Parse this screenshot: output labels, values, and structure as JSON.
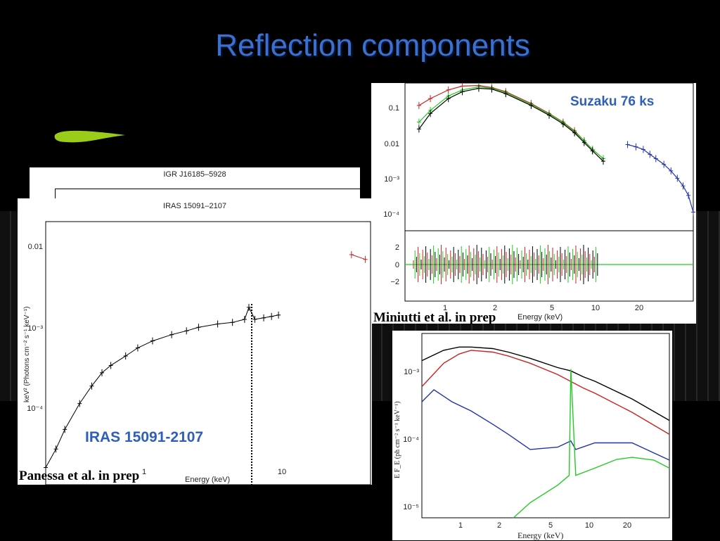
{
  "slide": {
    "title": "Reflection components",
    "accent_blue": "#3b6fd0",
    "leaf_color": "#9acd1a"
  },
  "panels": {
    "igr": {
      "title": "IGR J16185–5928"
    },
    "iras": {
      "title": "IRAS 15091–2107",
      "label": "IRAS 15091-2107",
      "credit": "Panessa et al. in prep",
      "xlabel": "Energy (keV)",
      "ylabel": "keV² (Photons cm⁻² s⁻¹ keV⁻¹)",
      "yticks": [
        "0.01",
        "10⁻³",
        "10⁻⁴"
      ],
      "xticks": [
        "1",
        "10"
      ]
    },
    "suzaku": {
      "label": "Suzaku 76 ks",
      "credit": "Miniutti et al. in prep",
      "xlabel": "Energy (keV)",
      "yticks": [
        "0.1",
        "0.01",
        "10⁻³",
        "10⁻⁴"
      ],
      "resid_ticks": [
        "2",
        "0",
        "−2"
      ],
      "xticks": [
        "1",
        "2",
        "5",
        "10",
        "20"
      ]
    },
    "model": {
      "xlabel": "Energy (keV)",
      "ylabel": "E F_E (ph cm⁻² s⁻¹ keV⁻¹)",
      "yticks": [
        "10⁻³",
        "10⁻⁴",
        "10⁻⁵"
      ],
      "xticks": [
        "1",
        "2",
        "5",
        "10",
        "20"
      ]
    }
  },
  "chart_data": [
    {
      "type": "scatter",
      "title": "IRAS 15091–2107",
      "xlabel": "Energy (keV)",
      "ylabel": "keV² (Photons cm⁻² s⁻¹ keV⁻¹)",
      "xscale": "log",
      "yscale": "log",
      "xlim": [
        0.3,
        40
      ],
      "ylim": [
        0.0002,
        0.02
      ],
      "series": [
        {
          "color": "#000000",
          "x": [
            0.3,
            0.35,
            0.4,
            0.5,
            0.6,
            0.7,
            0.8,
            1,
            1.2,
            1.5,
            2,
            2.5,
            3,
            4,
            5,
            6,
            6.4,
            7,
            8,
            9,
            10
          ],
          "y": [
            0.00025,
            0.00035,
            0.0005,
            0.0008,
            0.0011,
            0.0014,
            0.0016,
            0.0019,
            0.0022,
            0.0025,
            0.0028,
            0.003,
            0.0032,
            0.0034,
            0.0035,
            0.0037,
            0.0046,
            0.0037,
            0.0038,
            0.0039,
            0.004
          ]
        },
        {
          "color": "#cc2222",
          "x": [
            30,
            37
          ],
          "y": [
            0.012,
            0.011
          ]
        }
      ]
    },
    {
      "type": "line",
      "xlabel": "Energy (keV)",
      "xscale": "log",
      "yscale": "log",
      "xlim": [
        0.4,
        40
      ],
      "ylim": [
        5e-05,
        0.3
      ],
      "series": [
        {
          "color": "#cc2222",
          "x": [
            0.5,
            0.6,
            0.8,
            1,
            1.3,
            1.6,
            2,
            3,
            4,
            5,
            6,
            7,
            8,
            9.5
          ],
          "y": [
            0.08,
            0.12,
            0.2,
            0.25,
            0.26,
            0.23,
            0.18,
            0.09,
            0.05,
            0.03,
            0.018,
            0.01,
            0.006,
            0.0035
          ]
        },
        {
          "color": "#22cc22",
          "x": [
            0.5,
            0.6,
            0.8,
            1,
            1.3,
            1.6,
            2,
            3,
            4,
            5,
            6,
            7,
            8,
            9.5
          ],
          "y": [
            0.03,
            0.06,
            0.14,
            0.2,
            0.24,
            0.22,
            0.17,
            0.085,
            0.048,
            0.029,
            0.017,
            0.01,
            0.006,
            0.0035
          ]
        },
        {
          "color": "#000000",
          "x": [
            0.5,
            0.6,
            0.8,
            1,
            1.3,
            1.6,
            2,
            3,
            4,
            5,
            6,
            7,
            8,
            9.5
          ],
          "y": [
            0.02,
            0.05,
            0.12,
            0.18,
            0.22,
            0.21,
            0.16,
            0.08,
            0.045,
            0.027,
            0.016,
            0.009,
            0.0055,
            0.003
          ]
        },
        {
          "color": "#2233aa",
          "x": [
            14,
            16,
            18,
            20,
            22,
            25,
            28,
            31,
            34,
            37,
            40
          ],
          "y": [
            0.008,
            0.007,
            0.006,
            0.0045,
            0.0035,
            0.0025,
            0.0017,
            0.0011,
            0.0007,
            0.0004,
            0.00015
          ]
        }
      ]
    },
    {
      "type": "line",
      "xlabel": "Energy (keV)",
      "ylabel": "E F_E (ph cm⁻² s⁻¹ keV⁻¹)",
      "xscale": "log",
      "yscale": "log",
      "xlim": [
        0.4,
        40
      ],
      "ylim": [
        6e-06,
        0.003
      ],
      "series": [
        {
          "color": "#000000",
          "x": [
            0.4,
            0.6,
            0.8,
            1,
            1.5,
            2,
            3,
            5,
            6.4,
            8,
            10,
            20,
            40
          ],
          "y": [
            0.0012,
            0.0017,
            0.0019,
            0.0019,
            0.0018,
            0.0016,
            0.0013,
            0.00095,
            0.00085,
            0.0007,
            0.0006,
            0.00033,
            0.00016
          ]
        },
        {
          "color": "#cc2222",
          "x": [
            0.4,
            0.6,
            0.8,
            1,
            1.5,
            2,
            3,
            5,
            8,
            10,
            20,
            40
          ],
          "y": [
            0.0005,
            0.0011,
            0.0015,
            0.0017,
            0.0016,
            0.0014,
            0.0011,
            0.00075,
            0.00048,
            0.0004,
            0.00021,
            0.0001
          ]
        },
        {
          "color": "#2233aa",
          "x": [
            0.4,
            0.5,
            0.7,
            1,
            1.5,
            2,
            3,
            5,
            6.4,
            7,
            10,
            20,
            40
          ],
          "y": [
            0.0003,
            0.00045,
            0.0003,
            0.00022,
            0.00014,
            0.0001,
            6e-05,
            6.5e-05,
            8e-05,
            6e-05,
            7.5e-05,
            7.5e-05,
            4.2e-05
          ]
        },
        {
          "color": "#22cc22",
          "x": [
            2.2,
            3,
            5,
            6.2,
            6.4,
            7,
            10,
            15,
            20,
            30,
            40
          ],
          "y": [
            6e-06,
            1e-05,
            1.8e-05,
            2.5e-05,
            0.0009,
            2.5e-05,
            3.2e-05,
            4.3e-05,
            4.6e-05,
            4.2e-05,
            3.2e-05
          ]
        }
      ]
    }
  ]
}
